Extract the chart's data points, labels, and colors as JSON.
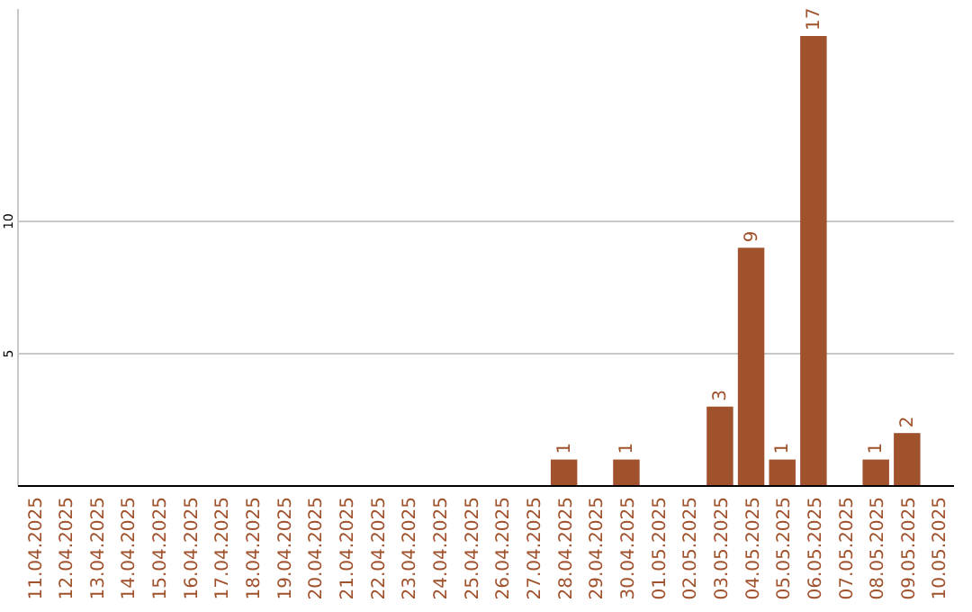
{
  "chart_data": {
    "type": "bar",
    "categories": [
      "11.04.2025",
      "12.04.2025",
      "13.04.2025",
      "14.04.2025",
      "15.04.2025",
      "16.04.2025",
      "17.04.2025",
      "18.04.2025",
      "19.04.2025",
      "20.04.2025",
      "21.04.2025",
      "22.04.2025",
      "23.04.2025",
      "24.04.2025",
      "25.04.2025",
      "26.04.2025",
      "27.04.2025",
      "28.04.2025",
      "29.04.2025",
      "30.04.2025",
      "01.05.2025",
      "02.05.2025",
      "03.05.2025",
      "04.05.2025",
      "05.05.2025",
      "06.05.2025",
      "07.05.2025",
      "08.05.2025",
      "09.05.2025",
      "10.05.2025"
    ],
    "values": [
      0,
      0,
      0,
      0,
      0,
      0,
      0,
      0,
      0,
      0,
      0,
      0,
      0,
      0,
      0,
      0,
      0,
      1,
      0,
      1,
      0,
      0,
      3,
      9,
      1,
      17,
      0,
      1,
      2,
      0
    ],
    "value_labels": [
      null,
      null,
      null,
      null,
      null,
      null,
      null,
      null,
      null,
      null,
      null,
      null,
      null,
      null,
      null,
      null,
      null,
      "1",
      null,
      "1",
      null,
      null,
      "3",
      "9",
      "1",
      "17",
      null,
      "1",
      "2",
      null
    ],
    "color": "#a0522d",
    "ylim": [
      0,
      17
    ],
    "yticks": [
      5,
      10
    ],
    "grid": "y"
  }
}
